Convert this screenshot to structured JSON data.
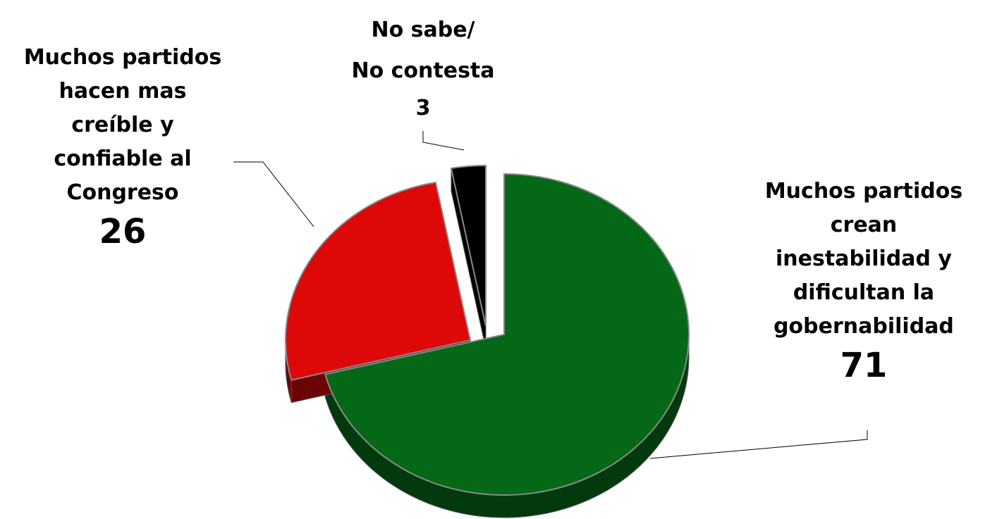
{
  "chart_data": {
    "type": "pie",
    "slices": [
      {
        "label_lines": [
          "Muchos partidos",
          "crean",
          "inestabilidad y",
          "dificultan la",
          "gobernabilidad"
        ],
        "value": 71,
        "value_label": "71",
        "color": "#056816",
        "side_color": "#033a0d"
      },
      {
        "label_lines": [
          "Muchos partidos",
          "hacen mas",
          "creíble y",
          "confiable al",
          "Congreso"
        ],
        "value": 26,
        "value_label": "26",
        "color": "#dd0808",
        "side_color": "#6b0404"
      },
      {
        "label_lines": [
          "No sabe/",
          "No contesta"
        ],
        "value": 3,
        "value_label": "3",
        "color": "#000000",
        "side_color": "#000000"
      }
    ],
    "style": "3d-exploded",
    "legend": "none"
  }
}
